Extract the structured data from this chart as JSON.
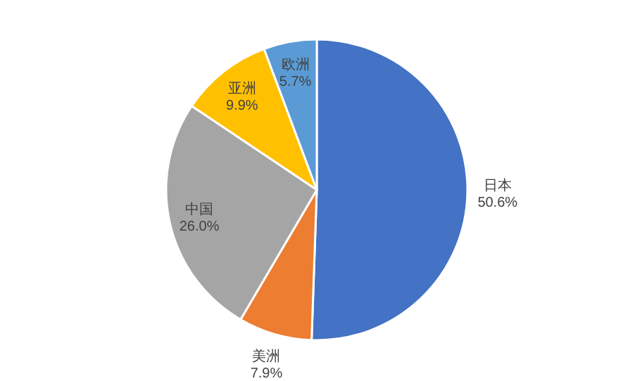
{
  "chart_data": {
    "type": "pie",
    "categories": [
      "日本",
      "美洲",
      "中国",
      "亚洲",
      "欧洲"
    ],
    "values": [
      50.6,
      7.9,
      26.0,
      9.9,
      5.7
    ],
    "value_labels": [
      "50.6%",
      "7.9%",
      "26.0%",
      "9.9%",
      "5.7%"
    ],
    "colors": [
      "#4472c4",
      "#ed7d31",
      "#a5a5a5",
      "#ffc000",
      "#5b9bd5"
    ],
    "legend": false
  }
}
